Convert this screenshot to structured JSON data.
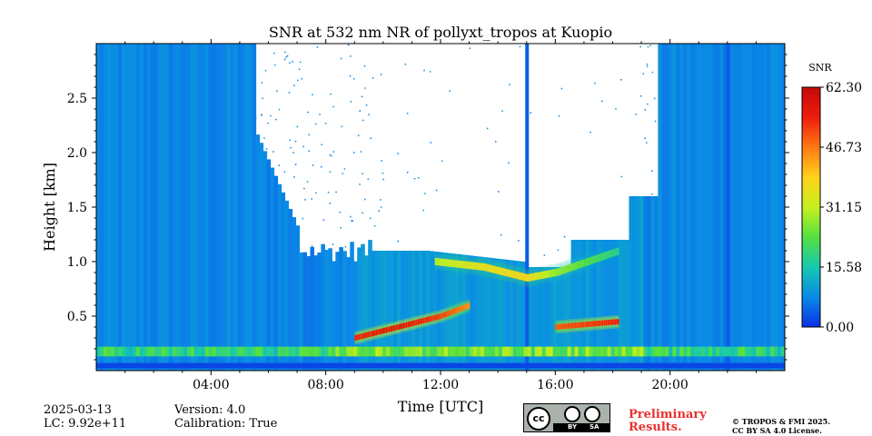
{
  "chart_data": {
    "type": "heatmap",
    "title": "SNR at 532 nm NR of pollyxt_tropos at Kuopio",
    "xlabel": "Time [UTC]",
    "ylabel": "Height [km]",
    "x_unit": "hours UTC",
    "xlim": [
      0,
      24
    ],
    "ylim": [
      0,
      3
    ],
    "xticks": [
      {
        "value": 4,
        "label": "04:00"
      },
      {
        "value": 8,
        "label": "08:00"
      },
      {
        "value": 12,
        "label": "12:00"
      },
      {
        "value": 16,
        "label": "16:00"
      },
      {
        "value": 20,
        "label": "20:00"
      }
    ],
    "yticks": [
      {
        "value": 0.5,
        "label": "0.5"
      },
      {
        "value": 1.0,
        "label": "1.0"
      },
      {
        "value": 1.5,
        "label": "1.5"
      },
      {
        "value": 2.0,
        "label": "2.0"
      },
      {
        "value": 2.5,
        "label": "2.5"
      }
    ],
    "colorbar": {
      "label": "SNR",
      "range": [
        0,
        62.3
      ],
      "ticks": [
        "0.00",
        "15.58",
        "31.15",
        "46.73",
        "62.30"
      ],
      "colors": [
        "#0a2fe6",
        "#0a8ae6",
        "#15c8b0",
        "#55e040",
        "#c8f01e",
        "#ffd21a",
        "#ff7814",
        "#ee1c0c",
        "#c40a0a"
      ]
    },
    "features": {
      "surface_layer": {
        "height_km": 0.15,
        "snr": 22
      },
      "aerosol_layer": [
        {
          "time": 9.0,
          "height_km": 0.3,
          "snr": 55
        },
        {
          "time": 10.5,
          "height_km": 0.4,
          "snr": 58
        },
        {
          "time": 12.0,
          "height_km": 0.5,
          "snr": 52
        },
        {
          "time": 13.0,
          "height_km": 0.6,
          "snr": 45
        },
        {
          "time": 16.0,
          "height_km": 0.4,
          "snr": 50
        },
        {
          "time": 18.2,
          "height_km": 0.45,
          "snr": 55
        }
      ],
      "cloud_layer": [
        {
          "time": 11.8,
          "height_km": 1.0,
          "snr": 30
        },
        {
          "time": 13.5,
          "height_km": 0.95,
          "snr": 36
        },
        {
          "time": 15.0,
          "height_km": 0.85,
          "snr": 38
        },
        {
          "time": 16.0,
          "height_km": 0.9,
          "snr": 28
        },
        {
          "time": 18.2,
          "height_km": 1.1,
          "snr": 18
        }
      ],
      "gaps_hours": [
        15.0,
        22.0
      ]
    }
  },
  "footer": {
    "date": "2025-03-13",
    "lc": "LC: 9.92e+11",
    "version": "Version: 4.0",
    "calibration": "Calibration: True",
    "preliminary": [
      "Preliminary",
      "Results."
    ],
    "copyright": [
      "© TROPOS & FMI 2025.",
      "CC BY SA 4.0 License."
    ],
    "license_badge": {
      "logo": "cc",
      "left": "BY",
      "right": "SA"
    }
  }
}
